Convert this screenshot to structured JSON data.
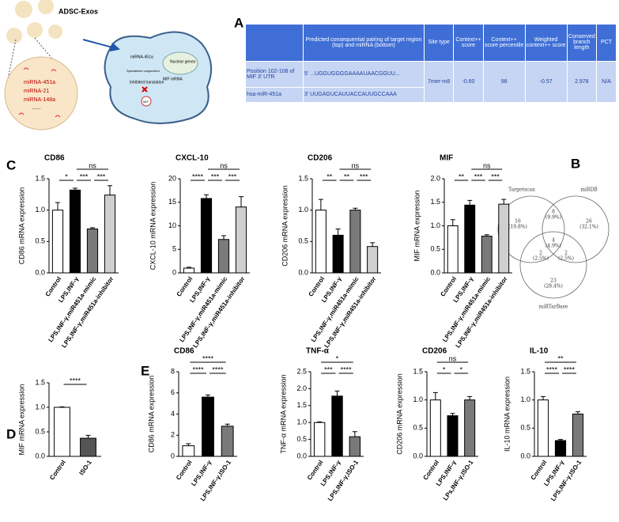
{
  "panel_labels": [
    "A",
    "B",
    "C",
    "D",
    "E"
  ],
  "diagram": {
    "title": "ADSC-Exos",
    "cargo": [
      "miRNA-451a",
      "miRNA-21",
      "miRNA-148a",
      "......"
    ],
    "cell_labels": [
      "miRNA-451a",
      "Specialized conjunction",
      "Inhibited translation",
      "MIF mRNA",
      "Nuclear genes",
      "MIF"
    ]
  },
  "table": {
    "header": [
      "Predicted consequential pairing of target region (top) and miRNA (bottom)",
      "Site type",
      "Context++ score",
      "Context++ score percentile",
      "Weighted context++ score",
      "Conserved branch length",
      "PCT"
    ],
    "rows": [
      [
        "Position 102-108 of MIF 3' UTR",
        "5'  ...UGGUGGGGAAAAUAACGGUU...",
        "7mer-m8",
        "-0.60",
        "98",
        "-0.57",
        "2.978",
        "N/A"
      ],
      [
        "hsa-miR-451a",
        "3'  UUGAGUCAUUACCAUUGCCAAA"
      ]
    ]
  },
  "venn": {
    "sets": [
      "Targetscan",
      "miRDB",
      "miRTarBase"
    ],
    "regions": [
      {
        "count": "16",
        "percent": "(19.8%)"
      },
      {
        "count": "8",
        "percent": "(9.9%)"
      },
      {
        "count": "26",
        "percent": "(32.1%)"
      },
      {
        "count": "4",
        "percent": "(4.9%)"
      },
      {
        "count": "2",
        "percent": "(2.5%)"
      },
      {
        "count": "2",
        "percent": "(2.5%)"
      },
      {
        "count": "23",
        "percent": "(28.4%)"
      }
    ]
  },
  "chart_data": [
    {
      "type": "bar",
      "title": "CD86",
      "y_label": "CD86 mRNA expression",
      "categories": [
        "Control",
        "LPS,INF-γ",
        "LPS,INF-γ,miR451a-mimic",
        "LPS,INF-γ,miR451a-inhibitor"
      ],
      "values": [
        1.0,
        1.32,
        0.7,
        1.24
      ],
      "errors": [
        0.12,
        0.03,
        0.02,
        0.15
      ],
      "colors": [
        "#ffffff",
        "#000000",
        "#7a7a7a",
        "#cfcfcf"
      ],
      "ylim": [
        0,
        1.5
      ],
      "yticks": [
        {
          "value": 0,
          "label": "0.0"
        },
        0.5,
        {
          "value": 1,
          "label": "1.0"
        },
        1.5
      ],
      "annotations": [
        "*",
        "***",
        "***",
        "ns"
      ]
    },
    {
      "type": "bar",
      "title": "CXCL-10",
      "y_label": "CXCL-10 mRNA expression",
      "categories": [
        "Control",
        "LPS,INF-γ",
        "LPS,INF-γ,miR451a-mimic",
        "LPS,INF-γ,miR451a-inhibitor"
      ],
      "values": [
        1.0,
        15.8,
        7.1,
        14.0
      ],
      "errors": [
        0.2,
        0.8,
        0.8,
        2.2
      ],
      "colors": [
        "#ffffff",
        "#000000",
        "#7a7a7a",
        "#cfcfcf"
      ],
      "ylim": [
        0,
        20
      ],
      "yticks": [
        0,
        5,
        10,
        15,
        20
      ],
      "annotations": [
        "****",
        "***",
        "***",
        "ns"
      ]
    },
    {
      "type": "bar",
      "title": "CD206",
      "y_label": "CD206 mRNA expression",
      "categories": [
        "Control",
        "LPS,INF-γ",
        "LPS,INF-γ,miR451a-mimic",
        "LPS,INF-γ,miR451a-inhibitor"
      ],
      "values": [
        1.0,
        0.6,
        1.0,
        0.42
      ],
      "errors": [
        0.17,
        0.1,
        0.03,
        0.06
      ],
      "colors": [
        "#ffffff",
        "#000000",
        "#7a7a7a",
        "#cfcfcf"
      ],
      "ylim": [
        0,
        1.5
      ],
      "yticks": [
        {
          "value": 0,
          "label": "0.0"
        },
        0.5,
        {
          "value": 1,
          "label": "1.0"
        },
        1.5
      ],
      "annotations": [
        "**",
        "**",
        "***",
        "ns"
      ]
    },
    {
      "type": "bar",
      "title": "MIF",
      "y_label": "MIF mRNA expression",
      "categories": [
        "Control",
        "LPS,INF-γ",
        "LPS,INF-γ,miR451a-mimic",
        "LPS,INF-γ,miR451a-inhibitor"
      ],
      "values": [
        1.0,
        1.44,
        0.78,
        1.46
      ],
      "errors": [
        0.13,
        0.1,
        0.03,
        0.1
      ],
      "colors": [
        "#ffffff",
        "#000000",
        "#7a7a7a",
        "#cfcfcf"
      ],
      "ylim": [
        0,
        2
      ],
      "yticks": [
        {
          "value": 0,
          "label": "0.0"
        },
        0.5,
        {
          "value": 1,
          "label": "1.0"
        },
        1.5,
        {
          "value": 2,
          "label": "2.0"
        }
      ],
      "annotations": [
        "**",
        "***",
        "***",
        "ns"
      ]
    },
    {
      "type": "bar",
      "y_label": "MIF mRNA expression",
      "categories": [
        "Control",
        "ISO-1"
      ],
      "values": [
        1.0,
        0.37
      ],
      "errors": [
        0.01,
        0.06
      ],
      "colors": [
        "#ffffff",
        "#555555"
      ],
      "ylim": [
        0,
        1.5
      ],
      "yticks": [
        {
          "value": 0,
          "label": "0.0"
        },
        0.5,
        {
          "value": 1,
          "label": "1.0"
        },
        1.5
      ],
      "annotations": [
        "****"
      ]
    },
    {
      "type": "bar",
      "title": "CD86",
      "y_label": "CD86 mRNA expression",
      "categories": [
        "Control",
        "LPS,INF-γ",
        "LPS,INF-γ,ISO-1"
      ],
      "values": [
        1.0,
        5.6,
        2.85
      ],
      "errors": [
        0.2,
        0.2,
        0.2
      ],
      "colors": [
        "#ffffff",
        "#000000",
        "#7a7a7a"
      ],
      "ylim": [
        0,
        8
      ],
      "yticks": [
        0,
        2,
        4,
        6,
        8
      ],
      "annotations": [
        "****",
        "****",
        "****"
      ]
    },
    {
      "type": "bar",
      "title": "TNF-α",
      "y_label": "TNF-α mRNA expression",
      "categories": [
        "Control",
        "LPS,INF-γ",
        "LPS,INF-γ,ISO-1"
      ],
      "values": [
        1.0,
        1.78,
        0.58
      ],
      "errors": [
        0.02,
        0.15,
        0.15
      ],
      "colors": [
        "#ffffff",
        "#000000",
        "#7a7a7a"
      ],
      "ylim": [
        0,
        2.5
      ],
      "yticks": [
        {
          "value": 0,
          "label": "0.0"
        },
        0.5,
        {
          "value": 1,
          "label": "1.0"
        },
        1.5,
        {
          "value": 2,
          "label": "2.0"
        },
        2.5
      ],
      "annotations": [
        "***",
        "****",
        "*"
      ]
    },
    {
      "type": "bar",
      "title": "CD206",
      "y_label": "CD206 mRNA expression",
      "categories": [
        "Control",
        "LPS,INF-γ",
        "LPs,INF-γ,ISO-1"
      ],
      "values": [
        1.0,
        0.72,
        1.0
      ],
      "errors": [
        0.13,
        0.04,
        0.06
      ],
      "colors": [
        "#ffffff",
        "#000000",
        "#7a7a7a"
      ],
      "ylim": [
        0,
        1.5
      ],
      "yticks": [
        {
          "value": 0,
          "label": "0.0"
        },
        0.5,
        {
          "value": 1,
          "label": "1.0"
        },
        1.5
      ],
      "annotations": [
        "*",
        "*",
        "ns"
      ]
    },
    {
      "type": "bar",
      "title": "IL-10",
      "y_label": "IL-10 mRNA expression",
      "categories": [
        "Control",
        "LPS,INF-γ",
        "LPS,INF-γ,ISO-1"
      ],
      "values": [
        1.0,
        0.28,
        0.75
      ],
      "errors": [
        0.06,
        0.02,
        0.04
      ],
      "colors": [
        "#ffffff",
        "#000000",
        "#7a7a7a"
      ],
      "ylim": [
        0,
        1.5
      ],
      "yticks": [
        {
          "value": 0,
          "label": "0.0"
        },
        0.5,
        {
          "value": 1,
          "label": "1.0"
        },
        1.5
      ],
      "annotations": [
        "****",
        "****",
        "**"
      ]
    }
  ]
}
